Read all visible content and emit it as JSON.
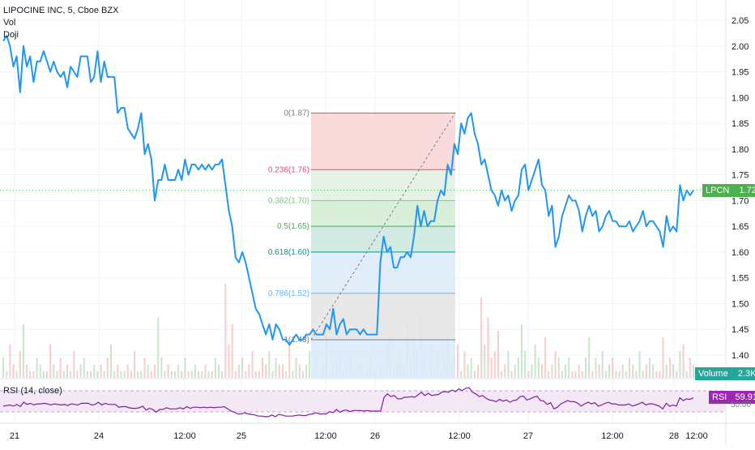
{
  "legend": {
    "symbol": "LIPOCINE INC, 5, Cboe BZX",
    "line2": "Vol",
    "line3": "Doji"
  },
  "rsi_legend": "RSI (14, close)",
  "tags": {
    "price_name": "LPCN",
    "price_value": "1.72",
    "volume_name": "Volume",
    "volume_value": "2.3K",
    "rsi_name": "RSI",
    "rsi_value": "59.91",
    "rsi_partial_label": "50.00"
  },
  "colors": {
    "price_line": "#2196f3",
    "price_tag": "#4caf50",
    "volume_tag": "#26a69a",
    "rsi_line": "#7b1fa2",
    "rsi_band": "#f3e5f5",
    "vol_up": "#a5d6a7",
    "vol_down": "#f7a9a9"
  },
  "chart_data": [
    {
      "type": "line",
      "series": [
        {
          "values_time_index": [
            0,
            2,
            4,
            6,
            8,
            10,
            12,
            14,
            16,
            18,
            20,
            22,
            24,
            26,
            28,
            30,
            32,
            34,
            36,
            38,
            40,
            42,
            44,
            46,
            48,
            50,
            52,
            54,
            56,
            58,
            60,
            62,
            64,
            66,
            68,
            70,
            72,
            74,
            76,
            78,
            80,
            82,
            84,
            86,
            88,
            90,
            92,
            94,
            96,
            98,
            100,
            102,
            104,
            106,
            108,
            110,
            112,
            114,
            116,
            118,
            120,
            122,
            124,
            126,
            128,
            130,
            132,
            134,
            136,
            138,
            140,
            142,
            144,
            146,
            148,
            150,
            152,
            154,
            156,
            158,
            160,
            162,
            164,
            166,
            168,
            170,
            172,
            174,
            176,
            178,
            180,
            182,
            184,
            186,
            188,
            190,
            192,
            194,
            196,
            198,
            200,
            202,
            204,
            206,
            208,
            210,
            212,
            214,
            216,
            218,
            220,
            222,
            224,
            226,
            228,
            230,
            232,
            234,
            236,
            238,
            240,
            242,
            244,
            246,
            248,
            250,
            252,
            254,
            256,
            258,
            260,
            262,
            264,
            266,
            268,
            270,
            272,
            274,
            276,
            278,
            280,
            282,
            284,
            286,
            288,
            290,
            292,
            294,
            296,
            298,
            300,
            302,
            304,
            306,
            308,
            310,
            312,
            314,
            316,
            318,
            320,
            322,
            324,
            326,
            328,
            330,
            332,
            334,
            336,
            338,
            340,
            342,
            344,
            346,
            348,
            350,
            352,
            354,
            356,
            358,
            360,
            362,
            364,
            366,
            368,
            370,
            372,
            374,
            376,
            378,
            380,
            382,
            384,
            386,
            388,
            390,
            392,
            394,
            396,
            398,
            400,
            402,
            404,
            406,
            408,
            410,
            412,
            414,
            416
          ],
          "values": [
            2.01,
            2.02,
            2.0,
            1.96,
            1.98,
            1.91,
            2.0,
            1.96,
            1.98,
            1.93,
            1.97,
            1.97,
            1.99,
            1.97,
            1.95,
            1.97,
            1.95,
            1.94,
            1.95,
            1.92,
            1.96,
            1.95,
            1.94,
            1.98,
            1.98,
            1.98,
            1.93,
            1.94,
            1.99,
            1.93,
            1.97,
            1.94,
            1.94,
            1.94,
            1.87,
            1.88,
            1.88,
            1.84,
            1.83,
            1.82,
            1.84,
            1.87,
            1.79,
            1.81,
            1.78,
            1.7,
            1.74,
            1.74,
            1.77,
            1.74,
            1.74,
            1.74,
            1.76,
            1.74,
            1.78,
            1.75,
            1.77,
            1.77,
            1.76,
            1.77,
            1.76,
            1.77,
            1.76,
            1.77,
            1.77,
            1.78,
            1.73,
            1.68,
            1.65,
            1.59,
            1.58,
            1.6,
            1.58,
            1.55,
            1.52,
            1.49,
            1.48,
            1.46,
            1.44,
            1.46,
            1.43,
            1.46,
            1.45,
            1.43,
            1.43,
            1.42,
            1.43,
            1.44,
            1.43,
            1.43,
            1.44,
            1.44,
            1.45,
            1.44,
            1.44,
            1.44,
            1.46,
            1.45,
            1.49,
            1.44,
            1.46,
            1.47,
            1.44,
            1.45,
            1.45,
            1.45,
            1.44,
            1.45,
            1.44,
            1.44,
            1.44,
            1.44,
            1.58,
            1.63,
            1.6,
            1.61,
            1.57,
            1.57,
            1.59,
            1.59,
            1.6,
            1.59,
            1.63,
            1.69,
            1.65,
            1.68,
            1.65,
            1.66,
            1.66,
            1.7,
            1.72,
            1.71,
            1.77,
            1.75,
            1.81,
            1.79,
            1.85,
            1.83,
            1.86,
            1.87,
            1.83,
            1.81,
            1.77,
            1.78,
            1.75,
            1.72,
            1.71,
            1.69,
            1.72,
            1.7,
            1.71,
            1.68,
            1.7,
            1.71,
            1.76,
            1.77,
            1.72,
            1.74,
            1.76,
            1.78,
            1.73,
            1.72,
            1.67,
            1.69,
            1.61,
            1.63,
            1.67,
            1.69,
            1.71,
            1.7,
            1.7,
            1.68,
            1.64,
            1.67,
            1.69,
            1.67,
            1.68,
            1.64,
            1.65,
            1.67,
            1.68,
            1.66,
            1.66,
            1.65,
            1.65,
            1.65,
            1.66,
            1.64,
            1.65,
            1.66,
            1.68,
            1.65,
            1.66,
            1.66,
            1.65,
            1.64,
            1.61,
            1.67,
            1.64,
            1.65,
            1.64,
            1.73,
            1.7,
            1.72,
            1.71,
            1.72
          ]
        }
      ],
      "y_axis_ticks": [
        "2.05",
        "2.00",
        "1.95",
        "1.90",
        "1.85",
        "1.80",
        "1.75",
        "1.70",
        "1.65",
        "1.60",
        "1.55",
        "1.50",
        "1.45",
        "1.40"
      ],
      "x_axis_ticks": [
        "21",
        "24",
        "12:00",
        "25",
        "12:00",
        "26",
        "12:00",
        "27",
        "12:00",
        "28",
        "12:00"
      ],
      "ylim": [
        1.37,
        2.08
      ],
      "grid": true
    },
    {
      "type": "bar",
      "name": "Volume",
      "values": [
        3,
        1,
        5,
        2,
        1,
        4,
        8,
        2,
        1,
        1,
        3,
        2,
        1,
        1,
        5,
        2,
        1,
        3,
        1,
        2,
        1,
        4,
        1,
        2,
        3,
        1,
        1,
        2,
        1,
        2,
        1,
        3,
        5,
        1,
        2,
        1,
        1,
        2,
        1,
        4,
        1,
        1,
        3,
        2,
        1,
        2,
        9,
        3,
        1,
        2,
        1,
        1,
        2,
        1,
        3,
        1,
        1,
        2,
        1,
        1,
        2,
        1,
        1,
        3,
        2,
        1,
        14,
        5,
        8,
        1,
        2,
        3,
        1,
        2,
        4,
        1,
        1,
        3,
        2,
        4,
        1,
        3,
        2,
        2,
        1,
        5,
        1,
        3,
        2,
        1,
        2,
        4,
        1,
        3,
        1,
        2,
        8,
        1,
        2,
        3,
        4,
        1,
        2,
        3,
        1,
        1,
        2,
        1,
        1,
        3,
        1,
        2,
        2,
        1,
        5,
        6,
        2,
        3,
        4,
        2,
        8,
        3,
        6,
        4,
        9,
        3,
        1,
        5,
        2,
        4,
        1,
        3,
        6,
        2,
        3,
        5,
        1,
        4,
        2,
        3,
        1,
        2,
        12,
        5,
        9,
        3,
        4,
        7,
        1,
        2,
        4,
        1,
        2,
        3,
        8,
        4,
        1,
        2,
        5,
        3,
        2,
        6,
        1,
        2,
        4,
        3,
        1,
        2,
        3,
        1,
        1,
        2,
        1,
        3,
        6,
        1,
        3,
        2,
        4,
        1,
        2,
        3,
        1,
        1,
        2,
        1,
        3,
        2,
        1,
        4,
        1,
        2,
        3,
        2,
        1,
        1,
        6,
        2,
        3,
        2,
        1,
        4,
        5,
        1,
        3,
        2
      ]
    },
    {
      "type": "line",
      "name": "RSI",
      "values": [
        45,
        46,
        47,
        45,
        48,
        44,
        52,
        48,
        50,
        47,
        49,
        49,
        50,
        49,
        47,
        49,
        48,
        47,
        48,
        46,
        49,
        48,
        47,
        50,
        50,
        50,
        47,
        48,
        52,
        47,
        50,
        48,
        48,
        48,
        43,
        44,
        44,
        42,
        41,
        41,
        42,
        45,
        38,
        41,
        39,
        34,
        39,
        39,
        42,
        40,
        40,
        40,
        42,
        40,
        44,
        41,
        43,
        43,
        42,
        43,
        42,
        43,
        42,
        43,
        43,
        44,
        40,
        36,
        34,
        31,
        31,
        33,
        31,
        30,
        29,
        27,
        27,
        26,
        26,
        29,
        26,
        30,
        29,
        27,
        27,
        27,
        28,
        29,
        28,
        28,
        30,
        31,
        33,
        31,
        31,
        31,
        35,
        33,
        39,
        34,
        37,
        38,
        35,
        37,
        37,
        37,
        36,
        37,
        36,
        36,
        36,
        36,
        61,
        67,
        62,
        64,
        58,
        58,
        61,
        61,
        62,
        61,
        65,
        70,
        64,
        68,
        64,
        65,
        66,
        70,
        71,
        70,
        74,
        71,
        76,
        73,
        77,
        78,
        70,
        67,
        62,
        64,
        59,
        56,
        55,
        53,
        57,
        54,
        56,
        52,
        55,
        56,
        62,
        63,
        56,
        58,
        61,
        63,
        55,
        54,
        48,
        51,
        40,
        43,
        49,
        52,
        55,
        53,
        53,
        50,
        45,
        49,
        52,
        49,
        51,
        45,
        47,
        50,
        52,
        49,
        49,
        47,
        47,
        47,
        49,
        45,
        47,
        49,
        52,
        47,
        49,
        49,
        47,
        45,
        40,
        50,
        45,
        47,
        45,
        60,
        55,
        58,
        57,
        60
      ]
    }
  ],
  "fib": [
    {
      "ratio": "0",
      "price": "1.87",
      "label": "0(1.87)",
      "color": "#787b86"
    },
    {
      "ratio": "0.236",
      "price": "1.76",
      "label": "0.236(1.76)",
      "color": "#e04a74"
    },
    {
      "ratio": "0.382",
      "price": "1.70",
      "label": "0.382(1.70)",
      "color": "#81c784"
    },
    {
      "ratio": "0.5",
      "price": "1.65",
      "label": "0.5(1.65)",
      "color": "#4caf50"
    },
    {
      "ratio": "0.618",
      "price": "1.60",
      "label": "0.618(1.60)",
      "color": "#089981"
    },
    {
      "ratio": "0.786",
      "price": "1.52",
      "label": "0.786(1.52)",
      "color": "#64b5f6"
    },
    {
      "ratio": "1",
      "price": "1.43",
      "label": "1(1.43)",
      "color": "#787b86"
    }
  ]
}
